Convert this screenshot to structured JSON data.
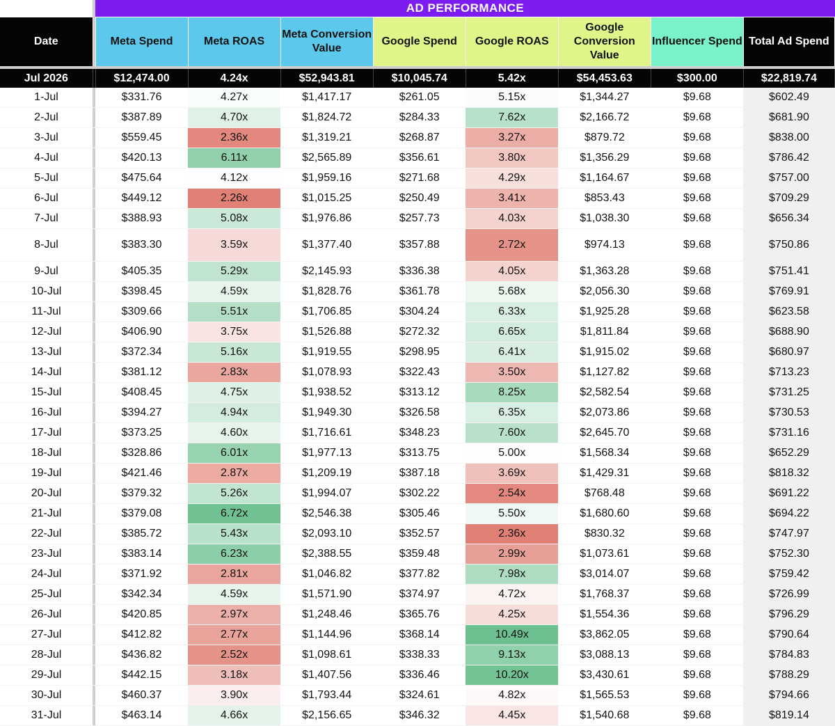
{
  "title": "AD PERFORMANCE",
  "headers": {
    "date": "Date",
    "meta_spend": "Meta Spend",
    "meta_roas": "Meta ROAS",
    "meta_conv": "Meta Conversion Value",
    "google_spend": "Google Spend",
    "google_roas": "Google ROAS",
    "google_conv": "Google Conversion Value",
    "influencer": "Influencer Spend",
    "total": "Total Ad Spend"
  },
  "colors": {
    "banner": "#7c1cf0",
    "meta_header": "#5bc8ec",
    "google_header": "#dff58a",
    "influencer_header": "#79f2c9",
    "good_roas": "#6cc08f",
    "bad_roas": "#e07d72"
  },
  "summary": {
    "date": "Jul 2026",
    "meta_spend": "$12,474.00",
    "meta_roas": "4.24x",
    "meta_conv": "$52,943.81",
    "google_spend": "$10,045.74",
    "google_roas": "5.42x",
    "google_conv": "$54,453.63",
    "influencer": "$300.00",
    "total": "$22,819.74"
  },
  "rows": [
    {
      "date": "1-Jul",
      "meta_spend": "$331.76",
      "meta_roas": "4.27x",
      "meta_conv": "$1,417.17",
      "google_spend": "$261.05",
      "google_roas": "5.15x",
      "google_conv": "$1,344.27",
      "influencer": "$9.68",
      "total": "$602.49"
    },
    {
      "date": "2-Jul",
      "meta_spend": "$387.89",
      "meta_roas": "4.70x",
      "meta_conv": "$1,824.72",
      "google_spend": "$284.33",
      "google_roas": "7.62x",
      "google_conv": "$2,166.72",
      "influencer": "$9.68",
      "total": "$681.90"
    },
    {
      "date": "3-Jul",
      "meta_spend": "$559.45",
      "meta_roas": "2.36x",
      "meta_conv": "$1,319.21",
      "google_spend": "$268.87",
      "google_roas": "3.27x",
      "google_conv": "$879.72",
      "influencer": "$9.68",
      "total": "$838.00"
    },
    {
      "date": "4-Jul",
      "meta_spend": "$420.13",
      "meta_roas": "6.11x",
      "meta_conv": "$2,565.89",
      "google_spend": "$356.61",
      "google_roas": "3.80x",
      "google_conv": "$1,356.29",
      "influencer": "$9.68",
      "total": "$786.42"
    },
    {
      "date": "5-Jul",
      "meta_spend": "$475.64",
      "meta_roas": "4.12x",
      "meta_conv": "$1,959.16",
      "google_spend": "$271.68",
      "google_roas": "4.29x",
      "google_conv": "$1,164.67",
      "influencer": "$9.68",
      "total": "$757.00"
    },
    {
      "date": "6-Jul",
      "meta_spend": "$449.12",
      "meta_roas": "2.26x",
      "meta_conv": "$1,015.25",
      "google_spend": "$250.49",
      "google_roas": "3.41x",
      "google_conv": "$853.43",
      "influencer": "$9.68",
      "total": "$709.29"
    },
    {
      "date": "7-Jul",
      "meta_spend": "$388.93",
      "meta_roas": "5.08x",
      "meta_conv": "$1,976.86",
      "google_spend": "$257.73",
      "google_roas": "4.03x",
      "google_conv": "$1,038.30",
      "influencer": "$9.68",
      "total": "$656.34"
    },
    {
      "date": "8-Jul",
      "meta_spend": "$383.30",
      "meta_roas": "3.59x",
      "meta_conv": "$1,377.40",
      "google_spend": "$357.88",
      "google_roas": "2.72x",
      "google_conv": "$974.13",
      "influencer": "$9.68",
      "total": "$750.86",
      "tall": true
    },
    {
      "date": "9-Jul",
      "meta_spend": "$405.35",
      "meta_roas": "5.29x",
      "meta_conv": "$2,145.93",
      "google_spend": "$336.38",
      "google_roas": "4.05x",
      "google_conv": "$1,363.28",
      "influencer": "$9.68",
      "total": "$751.41"
    },
    {
      "date": "10-Jul",
      "meta_spend": "$398.45",
      "meta_roas": "4.59x",
      "meta_conv": "$1,828.76",
      "google_spend": "$361.78",
      "google_roas": "5.68x",
      "google_conv": "$2,056.30",
      "influencer": "$9.68",
      "total": "$769.91"
    },
    {
      "date": "11-Jul",
      "meta_spend": "$309.66",
      "meta_roas": "5.51x",
      "meta_conv": "$1,706.85",
      "google_spend": "$304.24",
      "google_roas": "6.33x",
      "google_conv": "$1,925.28",
      "influencer": "$9.68",
      "total": "$623.58"
    },
    {
      "date": "12-Jul",
      "meta_spend": "$406.90",
      "meta_roas": "3.75x",
      "meta_conv": "$1,526.88",
      "google_spend": "$272.32",
      "google_roas": "6.65x",
      "google_conv": "$1,811.84",
      "influencer": "$9.68",
      "total": "$688.90"
    },
    {
      "date": "13-Jul",
      "meta_spend": "$372.34",
      "meta_roas": "5.16x",
      "meta_conv": "$1,919.55",
      "google_spend": "$298.95",
      "google_roas": "6.41x",
      "google_conv": "$1,915.02",
      "influencer": "$9.68",
      "total": "$680.97"
    },
    {
      "date": "14-Jul",
      "meta_spend": "$381.12",
      "meta_roas": "2.83x",
      "meta_conv": "$1,078.93",
      "google_spend": "$322.43",
      "google_roas": "3.50x",
      "google_conv": "$1,127.82",
      "influencer": "$9.68",
      "total": "$713.23"
    },
    {
      "date": "15-Jul",
      "meta_spend": "$408.45",
      "meta_roas": "4.75x",
      "meta_conv": "$1,938.52",
      "google_spend": "$313.12",
      "google_roas": "8.25x",
      "google_conv": "$2,582.54",
      "influencer": "$9.68",
      "total": "$731.25"
    },
    {
      "date": "16-Jul",
      "meta_spend": "$394.27",
      "meta_roas": "4.94x",
      "meta_conv": "$1,949.30",
      "google_spend": "$326.58",
      "google_roas": "6.35x",
      "google_conv": "$2,073.86",
      "influencer": "$9.68",
      "total": "$730.53"
    },
    {
      "date": "17-Jul",
      "meta_spend": "$373.25",
      "meta_roas": "4.60x",
      "meta_conv": "$1,716.61",
      "google_spend": "$348.23",
      "google_roas": "7.60x",
      "google_conv": "$2,645.70",
      "influencer": "$9.68",
      "total": "$731.16"
    },
    {
      "date": "18-Jul",
      "meta_spend": "$328.86",
      "meta_roas": "6.01x",
      "meta_conv": "$1,977.13",
      "google_spend": "$313.75",
      "google_roas": "5.00x",
      "google_conv": "$1,568.34",
      "influencer": "$9.68",
      "total": "$652.29"
    },
    {
      "date": "19-Jul",
      "meta_spend": "$421.46",
      "meta_roas": "2.87x",
      "meta_conv": "$1,209.19",
      "google_spend": "$387.18",
      "google_roas": "3.69x",
      "google_conv": "$1,429.31",
      "influencer": "$9.68",
      "total": "$818.32"
    },
    {
      "date": "20-Jul",
      "meta_spend": "$379.32",
      "meta_roas": "5.26x",
      "meta_conv": "$1,994.07",
      "google_spend": "$302.22",
      "google_roas": "2.54x",
      "google_conv": "$768.48",
      "influencer": "$9.68",
      "total": "$691.22"
    },
    {
      "date": "21-Jul",
      "meta_spend": "$379.08",
      "meta_roas": "6.72x",
      "meta_conv": "$2,546.38",
      "google_spend": "$305.46",
      "google_roas": "5.50x",
      "google_conv": "$1,680.60",
      "influencer": "$9.68",
      "total": "$694.22"
    },
    {
      "date": "22-Jul",
      "meta_spend": "$385.72",
      "meta_roas": "5.43x",
      "meta_conv": "$2,093.10",
      "google_spend": "$352.57",
      "google_roas": "2.36x",
      "google_conv": "$830.32",
      "influencer": "$9.68",
      "total": "$747.97"
    },
    {
      "date": "23-Jul",
      "meta_spend": "$383.14",
      "meta_roas": "6.23x",
      "meta_conv": "$2,388.55",
      "google_spend": "$359.48",
      "google_roas": "2.99x",
      "google_conv": "$1,073.61",
      "influencer": "$9.68",
      "total": "$752.30"
    },
    {
      "date": "24-Jul",
      "meta_spend": "$371.92",
      "meta_roas": "2.81x",
      "meta_conv": "$1,046.82",
      "google_spend": "$377.82",
      "google_roas": "7.98x",
      "google_conv": "$3,014.07",
      "influencer": "$9.68",
      "total": "$759.42"
    },
    {
      "date": "25-Jul",
      "meta_spend": "$342.34",
      "meta_roas": "4.59x",
      "meta_conv": "$1,571.90",
      "google_spend": "$374.97",
      "google_roas": "4.72x",
      "google_conv": "$1,768.37",
      "influencer": "$9.68",
      "total": "$726.99"
    },
    {
      "date": "26-Jul",
      "meta_spend": "$420.85",
      "meta_roas": "2.97x",
      "meta_conv": "$1,248.46",
      "google_spend": "$365.76",
      "google_roas": "4.25x",
      "google_conv": "$1,554.36",
      "influencer": "$9.68",
      "total": "$796.29"
    },
    {
      "date": "27-Jul",
      "meta_spend": "$412.82",
      "meta_roas": "2.77x",
      "meta_conv": "$1,144.96",
      "google_spend": "$368.14",
      "google_roas": "10.49x",
      "google_conv": "$3,862.05",
      "influencer": "$9.68",
      "total": "$790.64"
    },
    {
      "date": "28-Jul",
      "meta_spend": "$436.82",
      "meta_roas": "2.52x",
      "meta_conv": "$1,098.61",
      "google_spend": "$338.33",
      "google_roas": "9.13x",
      "google_conv": "$3,088.13",
      "influencer": "$9.68",
      "total": "$784.83"
    },
    {
      "date": "29-Jul",
      "meta_spend": "$442.15",
      "meta_roas": "3.18x",
      "meta_conv": "$1,407.56",
      "google_spend": "$336.46",
      "google_roas": "10.20x",
      "google_conv": "$3,430.61",
      "influencer": "$9.68",
      "total": "$788.29"
    },
    {
      "date": "30-Jul",
      "meta_spend": "$460.37",
      "meta_roas": "3.90x",
      "meta_conv": "$1,793.44",
      "google_spend": "$324.61",
      "google_roas": "4.82x",
      "google_conv": "$1,565.53",
      "influencer": "$9.68",
      "total": "$794.66"
    },
    {
      "date": "31-Jul",
      "meta_spend": "$463.14",
      "meta_roas": "4.66x",
      "meta_conv": "$2,156.65",
      "google_spend": "$346.32",
      "google_roas": "4.45x",
      "google_conv": "$1,540.68",
      "influencer": "$9.68",
      "total": "$819.14"
    }
  ]
}
